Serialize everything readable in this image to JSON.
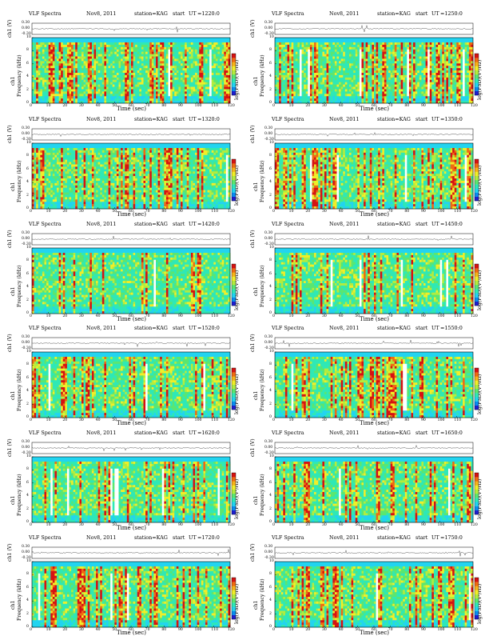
{
  "figure": {
    "panel_title_left": "VLF Spectra",
    "panel_date": "Nov8, 2011",
    "panel_station": "station=KAG",
    "panel_start": "start",
    "ut_label": "UT",
    "wave_ylabel": "ch1 (V)",
    "spec_ylabel_ch": "ch1",
    "spec_ylabel": "Frequency (kHz)",
    "xlabel": "Time (sec)",
    "colorbar_label": "log(PSD)(V²/Hz)",
    "colormap": [
      "#1e1ecf",
      "#0a8cf0",
      "#22d4f0",
      "#2fe8b6",
      "#5be670",
      "#b3ec3e",
      "#f1ee28",
      "#f6b21a",
      "#f06a12",
      "#d61212",
      "#ffffff"
    ],
    "frame_color": "#000000"
  },
  "chart_data": [
    {
      "type": "heatmap",
      "title": "VLF Spectra",
      "date": "Nov8, 2011",
      "station": "station=KAG",
      "ut": "=1220:0",
      "xlabel": "Time (sec)",
      "ylabel": "Frequency (kHz)",
      "xlim": [
        0,
        120
      ],
      "ylim": [
        0,
        10
      ],
      "x_ticks": [
        0,
        10,
        20,
        30,
        40,
        50,
        60,
        70,
        80,
        90,
        100,
        110,
        120
      ],
      "y_ticks": [
        0,
        2,
        4,
        6,
        8,
        10
      ],
      "wave_ylim": [
        -0.3,
        0.3
      ],
      "wave_ticks": [
        "0.30",
        "0.00",
        "-0.30"
      ],
      "intensity": 0.55
    },
    {
      "type": "heatmap",
      "title": "VLF Spectra",
      "date": "Nov8, 2011",
      "station": "station=KAG",
      "ut": "=1250:0",
      "xlabel": "Time (sec)",
      "ylabel": "Frequency (kHz)",
      "xlim": [
        0,
        120
      ],
      "ylim": [
        0,
        10
      ],
      "x_ticks": [
        0,
        10,
        20,
        30,
        40,
        50,
        60,
        70,
        80,
        90,
        100,
        110,
        120
      ],
      "y_ticks": [
        0,
        2,
        4,
        6,
        8,
        10
      ],
      "wave_ylim": [
        -0.3,
        0.3
      ],
      "wave_ticks": [
        "0.30",
        "0.00",
        "-0.30"
      ],
      "intensity": 0.6
    },
    {
      "type": "heatmap",
      "title": "VLF Spectra",
      "date": "Nov8, 2011",
      "station": "station=KAG",
      "ut": "=1320:0",
      "xlabel": "Time (sec)",
      "ylabel": "Frequency (kHz)",
      "xlim": [
        0,
        120
      ],
      "ylim": [
        0,
        10
      ],
      "x_ticks": [
        0,
        10,
        20,
        30,
        40,
        50,
        60,
        70,
        80,
        90,
        100,
        110,
        120
      ],
      "y_ticks": [
        0,
        2,
        4,
        6,
        8,
        10
      ],
      "wave_ylim": [
        -0.3,
        0.3
      ],
      "wave_ticks": [
        "0.30",
        "0.00",
        "-0.30"
      ],
      "intensity": 0.5
    },
    {
      "type": "heatmap",
      "title": "VLF Spectra",
      "date": "Nov8, 2011",
      "station": "station=KAG",
      "ut": "=1350:0",
      "xlabel": "Time (sec)",
      "ylabel": "Frequency (kHz)",
      "xlim": [
        0,
        120
      ],
      "ylim": [
        0,
        10
      ],
      "x_ticks": [
        0,
        10,
        20,
        30,
        40,
        50,
        60,
        70,
        80,
        90,
        100,
        110,
        120
      ],
      "y_ticks": [
        0,
        2,
        4,
        6,
        8,
        10
      ],
      "wave_ylim": [
        -0.3,
        0.3
      ],
      "wave_ticks": [
        "0.30",
        "0.00",
        "-0.30"
      ],
      "intensity": 0.5
    },
    {
      "type": "heatmap",
      "title": "VLF Spectra",
      "date": "Nov8, 2011",
      "station": "station=KAG",
      "ut": "=1420:0",
      "xlabel": "Time (sec)",
      "ylabel": "Frequency (kHz)",
      "xlim": [
        0,
        120
      ],
      "ylim": [
        0,
        10
      ],
      "x_ticks": [
        0,
        10,
        20,
        30,
        40,
        50,
        60,
        70,
        80,
        90,
        100,
        110,
        120
      ],
      "y_ticks": [
        0,
        2,
        4,
        6,
        8,
        10
      ],
      "wave_ylim": [
        -0.3,
        0.3
      ],
      "wave_ticks": [
        "0.30",
        "0.00",
        "-0.30"
      ],
      "intensity": 0.35
    },
    {
      "type": "heatmap",
      "title": "VLF Spectra",
      "date": "Nov8, 2011",
      "station": "station=KAG",
      "ut": "=1450:0",
      "xlabel": "Time (sec)",
      "ylabel": "Frequency (kHz)",
      "xlim": [
        0,
        120
      ],
      "ylim": [
        0,
        10
      ],
      "x_ticks": [
        0,
        10,
        20,
        30,
        40,
        50,
        60,
        70,
        80,
        90,
        100,
        110,
        120
      ],
      "y_ticks": [
        0,
        2,
        4,
        6,
        8,
        10
      ],
      "wave_ylim": [
        -0.3,
        0.3
      ],
      "wave_ticks": [
        "0.30",
        "0.00",
        "-0.30"
      ],
      "intensity": 0.4
    },
    {
      "type": "heatmap",
      "title": "VLF Spectra",
      "date": "Nov8, 2011",
      "station": "station=KAG",
      "ut": "=1520:0",
      "xlabel": "Time (sec)",
      "ylabel": "Frequency (kHz)",
      "xlim": [
        0,
        120
      ],
      "ylim": [
        0,
        10
      ],
      "x_ticks": [
        0,
        10,
        20,
        30,
        40,
        50,
        60,
        70,
        80,
        90,
        100,
        110,
        120
      ],
      "y_ticks": [
        0,
        2,
        4,
        6,
        8,
        10
      ],
      "wave_ylim": [
        -0.3,
        0.3
      ],
      "wave_ticks": [
        "0.30",
        "0.00",
        "-0.30"
      ],
      "intensity": 0.55
    },
    {
      "type": "heatmap",
      "title": "VLF Spectra",
      "date": "Nov8, 2011",
      "station": "station=KAG",
      "ut": "=1550:0",
      "xlabel": "Time (sec)",
      "ylabel": "Frequency (kHz)",
      "xlim": [
        0,
        120
      ],
      "ylim": [
        0,
        10
      ],
      "x_ticks": [
        0,
        10,
        20,
        30,
        40,
        50,
        60,
        70,
        80,
        90,
        100,
        110,
        120
      ],
      "y_ticks": [
        0,
        2,
        4,
        6,
        8,
        10
      ],
      "wave_ylim": [
        -0.3,
        0.3
      ],
      "wave_ticks": [
        "0.30",
        "0.00",
        "-0.30"
      ],
      "intensity": 0.6
    },
    {
      "type": "heatmap",
      "title": "VLF Spectra",
      "date": "Nov8, 2011",
      "station": "station=KAG",
      "ut": "=1620:0",
      "xlabel": "Time (sec)",
      "ylabel": "Frequency (kHz)",
      "xlim": [
        0,
        120
      ],
      "ylim": [
        0,
        10
      ],
      "x_ticks": [
        0,
        10,
        20,
        30,
        40,
        50,
        60,
        70,
        80,
        90,
        100,
        110,
        120
      ],
      "y_ticks": [
        0,
        2,
        4,
        6,
        8,
        10
      ],
      "wave_ylim": [
        -0.3,
        0.3
      ],
      "wave_ticks": [
        "0.30",
        "0.00",
        "-0.30"
      ],
      "intensity": 0.45
    },
    {
      "type": "heatmap",
      "title": "VLF Spectra",
      "date": "Nov8, 2011",
      "station": "station=KAG",
      "ut": "=1650:0",
      "xlabel": "Time (sec)",
      "ylabel": "Frequency (kHz)",
      "xlim": [
        0,
        120
      ],
      "ylim": [
        0,
        10
      ],
      "x_ticks": [
        0,
        10,
        20,
        30,
        40,
        50,
        60,
        70,
        80,
        90,
        100,
        110,
        120
      ],
      "y_ticks": [
        0,
        2,
        4,
        6,
        8,
        10
      ],
      "wave_ylim": [
        -0.3,
        0.3
      ],
      "wave_ticks": [
        "0.30",
        "0.00",
        "-0.30"
      ],
      "intensity": 0.4
    },
    {
      "type": "heatmap",
      "title": "VLF Spectra",
      "date": "Nov8, 2011",
      "station": "station=KAG",
      "ut": "=1720:0",
      "xlabel": "Time (sec)",
      "ylabel": "Frequency (kHz)",
      "xlim": [
        0,
        120
      ],
      "ylim": [
        0,
        10
      ],
      "x_ticks": [
        0,
        10,
        20,
        30,
        40,
        50,
        60,
        70,
        80,
        90,
        100,
        110,
        120
      ],
      "y_ticks": [
        0,
        2,
        4,
        6,
        8,
        10
      ],
      "wave_ylim": [
        -0.3,
        0.3
      ],
      "wave_ticks": [
        "0.30",
        "0.00",
        "-0.30"
      ],
      "intensity": 0.5
    },
    {
      "type": "heatmap",
      "title": "VLF Spectra",
      "date": "Nov8, 2011",
      "station": "station=KAG",
      "ut": "=1750:0",
      "xlabel": "Time (sec)",
      "ylabel": "Frequency (kHz)",
      "xlim": [
        0,
        120
      ],
      "ylim": [
        0,
        10
      ],
      "x_ticks": [
        0,
        10,
        20,
        30,
        40,
        50,
        60,
        70,
        80,
        90,
        100,
        110,
        120
      ],
      "y_ticks": [
        0,
        2,
        4,
        6,
        8,
        10
      ],
      "wave_ylim": [
        -0.3,
        0.3
      ],
      "wave_ticks": [
        "0.30",
        "0.00",
        "-0.30"
      ],
      "intensity": 0.6
    }
  ]
}
